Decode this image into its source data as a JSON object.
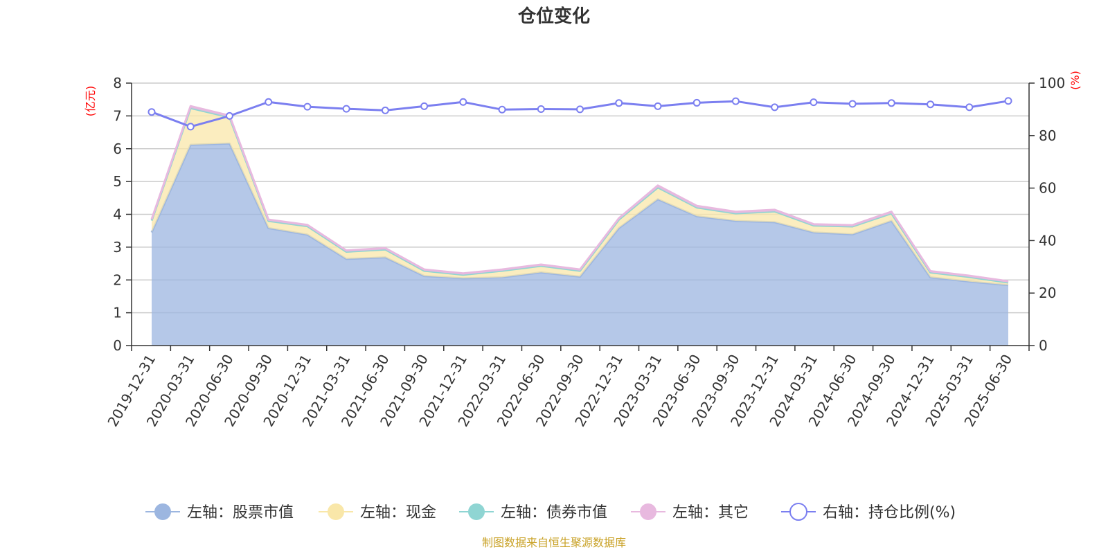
{
  "chart_data": {
    "type": "area",
    "title": "仓位变化",
    "left_axis_unit": "(亿元)",
    "right_axis_unit": "(%)",
    "ylim_left": [
      0,
      8
    ],
    "yticks_left": [
      "0",
      "1",
      "2",
      "3",
      "4",
      "5",
      "6",
      "7",
      "8"
    ],
    "ylim_right": [
      0,
      100
    ],
    "yticks_right": [
      "0",
      "20",
      "40",
      "60",
      "80",
      "100"
    ],
    "categories": [
      "2019-12-31",
      "2020-03-31",
      "2020-06-30",
      "2020-09-30",
      "2020-12-31",
      "2021-03-31",
      "2021-06-30",
      "2021-09-30",
      "2021-12-31",
      "2022-03-31",
      "2022-06-30",
      "2022-09-30",
      "2022-12-31",
      "2023-03-31",
      "2023-06-30",
      "2023-09-30",
      "2023-12-31",
      "2024-03-31",
      "2024-06-30",
      "2024-09-30",
      "2024-12-31",
      "2025-03-31",
      "2025-06-30"
    ],
    "series": [
      {
        "name": "左轴：股票市值",
        "axis": "left",
        "color": "#9cb6e0",
        "values": [
          3.45,
          6.12,
          6.16,
          3.58,
          3.38,
          2.64,
          2.69,
          2.12,
          2.05,
          2.08,
          2.23,
          2.1,
          3.58,
          4.46,
          3.94,
          3.8,
          3.76,
          3.45,
          3.39,
          3.8,
          2.08,
          1.95,
          1.84
        ]
      },
      {
        "name": "左轴：现金",
        "axis": "left",
        "color": "#f9e7a9",
        "values": [
          0.36,
          1.12,
          0.8,
          0.22,
          0.26,
          0.22,
          0.24,
          0.16,
          0.11,
          0.2,
          0.2,
          0.18,
          0.26,
          0.36,
          0.27,
          0.23,
          0.33,
          0.21,
          0.24,
          0.23,
          0.15,
          0.14,
          0.08
        ]
      },
      {
        "name": "左轴：债券市值",
        "axis": "left",
        "color": "#8fd5d3",
        "values": [
          0,
          0,
          0,
          0,
          0,
          0,
          0,
          0,
          0,
          0,
          0,
          0,
          0,
          0,
          0,
          0,
          0,
          0,
          0,
          0,
          0,
          0,
          0
        ]
      },
      {
        "name": "左轴：其它",
        "axis": "left",
        "color": "#e8b9df",
        "values": [
          0.04,
          0.06,
          0.05,
          0.04,
          0.04,
          0.04,
          0.04,
          0.04,
          0.04,
          0.04,
          0.04,
          0.04,
          0.04,
          0.06,
          0.05,
          0.05,
          0.05,
          0.04,
          0.04,
          0.05,
          0.04,
          0.04,
          0.04
        ]
      },
      {
        "name": "右轴：持仓比例(%)",
        "axis": "right",
        "color": "#7b7ff0",
        "values": [
          89.0,
          83.4,
          87.5,
          92.8,
          91.0,
          90.2,
          89.6,
          91.2,
          92.8,
          89.9,
          90.1,
          90.0,
          92.4,
          91.2,
          92.5,
          93.1,
          90.8,
          92.7,
          92.1,
          92.4,
          91.9,
          90.8,
          93.2
        ]
      }
    ],
    "legend_position": "bottom",
    "grid": true
  },
  "source_note": "制图数据来自恒生聚源数据库"
}
